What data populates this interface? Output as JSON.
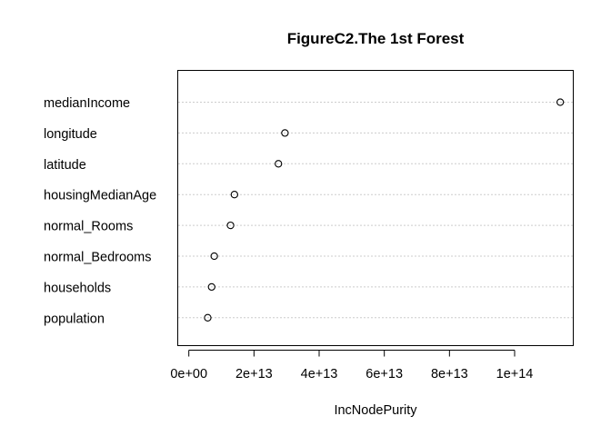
{
  "chart_data": {
    "type": "scatter",
    "title": "FigureC2.The 1st Forest",
    "xlabel": "IncNodePurity",
    "ylabel": "",
    "categories": [
      "medianIncome",
      "longitude",
      "latitude",
      "housingMedianAge",
      "normal_Rooms",
      "normal_Bedrooms",
      "households",
      "population"
    ],
    "values": [
      114000000000000.0,
      29500000000000.0,
      27500000000000.0,
      14000000000000.0,
      12800000000000.0,
      7800000000000.0,
      7000000000000.0,
      5800000000000.0
    ],
    "xlim": [
      -3400000000000.0,
      118000000000000.0
    ],
    "xticks": [
      0,
      20000000000000.0,
      40000000000000.0,
      60000000000000.0,
      80000000000000.0,
      100000000000000.0
    ],
    "xtick_labels": [
      "0e+00",
      "2e+13",
      "4e+13",
      "6e+13",
      "8e+13",
      "1e+14"
    ],
    "grid": "dotted horizontal guide per category"
  }
}
